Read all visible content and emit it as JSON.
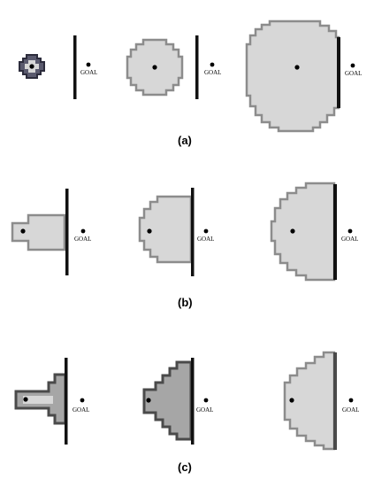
{
  "goal_label": "GOAL",
  "panels": [
    {
      "caption": "(a)"
    },
    {
      "caption": "(b)"
    },
    {
      "caption": "(c)"
    }
  ],
  "colors": {
    "fill_light": "#d7d7d7",
    "fill_mid": "#a6a6a6",
    "outline_gray": "#8c8c8c",
    "outline_dark": "#4a4a4a",
    "wall": "#111111",
    "dot": "#000000"
  }
}
